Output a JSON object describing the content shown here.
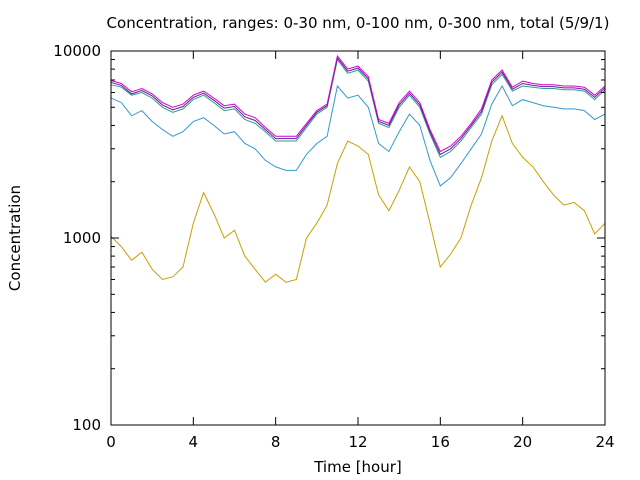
{
  "chart_data": {
    "type": "line",
    "title": "Concentration, ranges: 0-30 nm, 0-100 nm, 0-300 nm, total (5/9/1)",
    "xlabel": "Time [hour]",
    "ylabel": "Concentration",
    "xlim": [
      0,
      24
    ],
    "ylim": [
      100,
      10000
    ],
    "yscale": "log",
    "grid": false,
    "legend": "none",
    "x_ticks": [
      {
        "value": 0,
        "label": "0"
      },
      {
        "value": 4,
        "label": "4"
      },
      {
        "value": 8,
        "label": "8"
      },
      {
        "value": 12,
        "label": "12"
      },
      {
        "value": 16,
        "label": "16"
      },
      {
        "value": 20,
        "label": "20"
      },
      {
        "value": 24,
        "label": "24"
      }
    ],
    "y_ticks": [
      {
        "value": 100,
        "label": "100"
      },
      {
        "value": 1000,
        "label": "1000"
      },
      {
        "value": 10000,
        "label": "10000"
      }
    ],
    "x": [
      0,
      0.5,
      1,
      1.5,
      2,
      2.5,
      3,
      3.5,
      4,
      4.5,
      5,
      5.5,
      6,
      6.5,
      7,
      7.5,
      8,
      8.5,
      9,
      9.5,
      10,
      10.5,
      11,
      11.5,
      12,
      12.5,
      13,
      13.5,
      14,
      14.5,
      15,
      15.5,
      16,
      16.5,
      17,
      17.5,
      18,
      18.5,
      19,
      19.5,
      20,
      20.5,
      21,
      21.5,
      22,
      22.5,
      23,
      23.5,
      24
    ],
    "series": [
      {
        "color": "#c8a000",
        "values": [
          1020,
          900,
          760,
          840,
          680,
          600,
          620,
          700,
          1200,
          1750,
          1350,
          1000,
          1100,
          800,
          680,
          580,
          640,
          580,
          600,
          1000,
          1200,
          1500,
          2500,
          3300,
          3100,
          2800,
          1700,
          1400,
          1800,
          2400,
          2000,
          1200,
          700,
          820,
          1000,
          1500,
          2100,
          3300,
          4500,
          3200,
          2700,
          2400,
          2000,
          1700,
          1500,
          1550,
          1400,
          1050,
          1200
        ]
      },
      {
        "color": "#3399cc",
        "values": [
          5600,
          5300,
          4500,
          4800,
          4200,
          3800,
          3500,
          3700,
          4200,
          4400,
          4000,
          3600,
          3700,
          3200,
          3000,
          2600,
          2400,
          2300,
          2300,
          2800,
          3200,
          3500,
          6500,
          5600,
          5800,
          5000,
          3200,
          2900,
          3700,
          4600,
          4000,
          2600,
          1900,
          2100,
          2500,
          3000,
          3600,
          5200,
          6500,
          5100,
          5500,
          5300,
          5100,
          5000,
          4900,
          4900,
          4800,
          4300,
          4600
        ]
      },
      {
        "color": "#2d9d8c",
        "values": [
          6600,
          6400,
          5800,
          6000,
          5600,
          5000,
          4700,
          4900,
          5500,
          5800,
          5300,
          4800,
          4900,
          4300,
          4100,
          3700,
          3300,
          3300,
          3300,
          3900,
          4600,
          5000,
          9000,
          7600,
          7900,
          6900,
          4100,
          3900,
          5000,
          5800,
          5000,
          3600,
          2700,
          2900,
          3300,
          3900,
          4600,
          6600,
          7500,
          6100,
          6500,
          6400,
          6300,
          6300,
          6200,
          6200,
          6100,
          5500,
          6200
        ]
      },
      {
        "color": "#6a1b9a",
        "values": [
          6800,
          6550,
          5900,
          6150,
          5750,
          5150,
          4850,
          5050,
          5650,
          5950,
          5450,
          4950,
          5050,
          4450,
          4250,
          3800,
          3400,
          3400,
          3400,
          4000,
          4700,
          5100,
          9200,
          7800,
          8100,
          7100,
          4200,
          4000,
          5150,
          5950,
          5150,
          3700,
          2800,
          3000,
          3400,
          4000,
          4750,
          6800,
          7700,
          6250,
          6700,
          6550,
          6450,
          6450,
          6350,
          6350,
          6250,
          5650,
          6350
        ]
      },
      {
        "color": "#d400d4",
        "values": [
          6950,
          6700,
          6050,
          6300,
          5900,
          5300,
          5000,
          5200,
          5800,
          6100,
          5600,
          5100,
          5200,
          4600,
          4400,
          3900,
          3500,
          3500,
          3500,
          4100,
          4800,
          5200,
          9400,
          8000,
          8300,
          7300,
          4300,
          4100,
          5300,
          6100,
          5300,
          3800,
          2900,
          3100,
          3500,
          4100,
          4900,
          7000,
          7900,
          6400,
          6900,
          6700,
          6600,
          6600,
          6500,
          6500,
          6400,
          5800,
          6500
        ]
      }
    ]
  }
}
